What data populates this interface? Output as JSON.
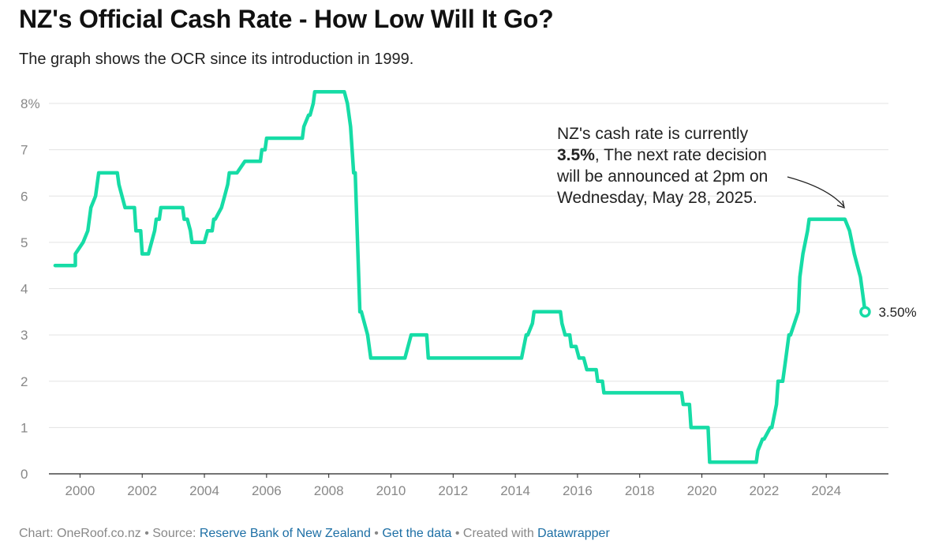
{
  "header": {
    "title": "NZ's Official Cash Rate - How Low Will It Go?",
    "subtitle": "The graph shows the OCR since its introduction in 1999."
  },
  "annotation": {
    "pre": "NZ's cash rate is currently ",
    "bold": "3.5%",
    "post": ", The next rate decision will be announced at 2pm on Wednesday, May 28, 2025."
  },
  "footer": {
    "chart_label": "Chart: OneRoof.co.nz",
    "sep1": " • ",
    "source_label": "Source: ",
    "source_link": "Reserve Bank of New Zealand",
    "sep2": " • ",
    "data_link": "Get the data",
    "sep3": " • ",
    "created_label": "Created with ",
    "tool_link": "Datawrapper"
  },
  "colors": {
    "line": "#16dca6",
    "grid": "#e3e3e3",
    "axis": "#222222",
    "tick_text": "#888888"
  },
  "chart_data": {
    "type": "line",
    "title": "NZ's Official Cash Rate - How Low Will It Go?",
    "subtitle": "The graph shows the OCR since its introduction in 1999.",
    "xlabel": "",
    "ylabel": "",
    "xlim": [
      1999.0,
      2026.0
    ],
    "ylim": [
      0,
      8
    ],
    "grid": true,
    "y_ticks": [
      0,
      1,
      2,
      3,
      4,
      5,
      6,
      7,
      8
    ],
    "y_tick_labels": [
      "0",
      "1",
      "2",
      "3",
      "4",
      "5",
      "6",
      "7",
      "8%"
    ],
    "x_ticks": [
      2000,
      2002,
      2004,
      2006,
      2008,
      2010,
      2012,
      2014,
      2016,
      2018,
      2020,
      2022,
      2024
    ],
    "x_tick_labels": [
      "2000",
      "2002",
      "2004",
      "2006",
      "2008",
      "2010",
      "2012",
      "2014",
      "2016",
      "2018",
      "2020",
      "2022",
      "2024"
    ],
    "end_label": "3.50%",
    "series": [
      {
        "x": [
          1999.2,
          1999.85,
          1999.85,
          2000.1,
          2000.1,
          2000.25,
          2000.25,
          2000.35,
          2000.5,
          2000.6,
          2001.2,
          2001.25,
          2001.45,
          2001.55,
          2001.75,
          2001.8,
          2001.95,
          2002.0,
          2002.2,
          2002.4,
          2002.45,
          2002.55,
          2002.6,
          2003.3,
          2003.35,
          2003.45,
          2003.55,
          2003.6,
          2003.9,
          2004.0,
          2004.1,
          2004.25,
          2004.3,
          2004.35,
          2004.55,
          2004.65,
          2004.75,
          2004.8,
          2005.0,
          2005.05,
          2005.3,
          2005.35,
          2005.8,
          2005.85,
          2005.95,
          2006.0,
          2007.15,
          2007.2,
          2007.35,
          2007.4,
          2007.5,
          2007.55,
          2008.5,
          2008.6,
          2008.6,
          2008.7,
          2008.8,
          2008.85,
          2009.0,
          2009.05,
          2009.25,
          2009.35,
          2010.4,
          2010.45,
          2010.65,
          2011.15,
          2011.2,
          2014.15,
          2014.2,
          2014.35,
          2014.4,
          2014.55,
          2014.6,
          2015.45,
          2015.5,
          2015.6,
          2015.75,
          2015.8,
          2015.95,
          2016.05,
          2016.2,
          2016.3,
          2016.6,
          2016.65,
          2016.8,
          2016.85,
          2019.35,
          2019.4,
          2019.6,
          2019.65,
          2020.2,
          2020.25,
          2021.75,
          2021.8,
          2021.95,
          2022.0,
          2022.2,
          2022.25,
          2022.4,
          2022.45,
          2022.6,
          2022.7,
          2022.8,
          2022.85,
          2023.1,
          2023.15,
          2023.25,
          2023.4,
          2023.45,
          2024.55,
          2024.6,
          2024.75,
          2024.9,
          2025.1,
          2025.25
        ],
        "values": [
          4.5,
          4.5,
          4.75,
          5.0,
          5.0,
          5.25,
          5.25,
          5.75,
          6.0,
          6.5,
          6.5,
          6.25,
          5.75,
          5.75,
          5.75,
          5.25,
          5.25,
          4.75,
          4.75,
          5.25,
          5.5,
          5.5,
          5.75,
          5.75,
          5.5,
          5.5,
          5.25,
          5.0,
          5.0,
          5.0,
          5.25,
          5.25,
          5.5,
          5.5,
          5.75,
          6.0,
          6.25,
          6.5,
          6.5,
          6.5,
          6.75,
          6.75,
          6.75,
          7.0,
          7.0,
          7.25,
          7.25,
          7.5,
          7.75,
          7.75,
          8.0,
          8.25,
          8.25,
          8.0,
          8.0,
          7.5,
          6.5,
          6.5,
          3.5,
          3.5,
          3.0,
          2.5,
          2.5,
          2.5,
          3.0,
          3.0,
          2.5,
          2.5,
          2.5,
          3.0,
          3.0,
          3.25,
          3.5,
          3.5,
          3.25,
          3.0,
          3.0,
          2.75,
          2.75,
          2.5,
          2.5,
          2.25,
          2.25,
          2.0,
          2.0,
          1.75,
          1.75,
          1.5,
          1.5,
          1.0,
          1.0,
          0.25,
          0.25,
          0.5,
          0.75,
          0.75,
          1.0,
          1.0,
          1.5,
          2.0,
          2.0,
          2.5,
          3.0,
          3.0,
          3.5,
          4.25,
          4.75,
          5.25,
          5.5,
          5.5,
          5.5,
          5.25,
          4.75,
          4.25,
          3.5
        ]
      }
    ]
  }
}
